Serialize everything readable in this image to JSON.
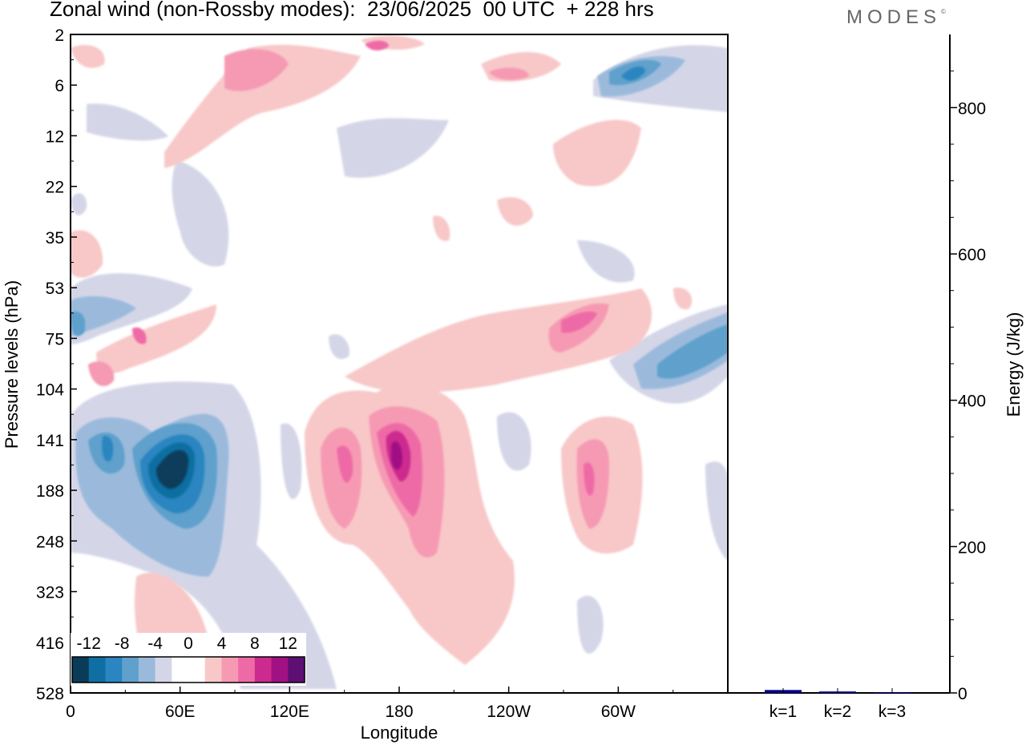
{
  "title": "Zonal wind (non-Rossby modes):  23/06/2025  00 UTC  + 228 hrs",
  "logo": {
    "text": "MODES",
    "mark": "©"
  },
  "chart_data": [
    {
      "type": "heatmap",
      "xlabel": "Longitude",
      "ylabel": "Pressure levels (hPa)",
      "x_ticks": [
        "0",
        "60E",
        "120E",
        "180",
        "120W",
        "60W"
      ],
      "y_ticks": [
        "2",
        "6",
        "12",
        "22",
        "35",
        "53",
        "75",
        "104",
        "141",
        "188",
        "248",
        "323",
        "416",
        "528"
      ],
      "colorbar": {
        "labels": [
          "-12",
          "-8",
          "-4",
          "0",
          "4",
          "8",
          "12"
        ],
        "colors": [
          "#0a3c5a",
          "#0f6ea2",
          "#2a85c0",
          "#5fa0cc",
          "#9bbadb",
          "#d4d6e8",
          "#ffffff",
          "#ffffff",
          "#f8c8c8",
          "#f69ab4",
          "#ee6aa6",
          "#cc2a8e",
          "#a11184",
          "#5e0f73"
        ]
      },
      "features": [
        {
          "name": "negative core",
          "lon": 50,
          "level": "141-188",
          "value": -14
        },
        {
          "name": "negative core",
          "lon": 20,
          "level": "141",
          "value": -8
        },
        {
          "name": "negative core",
          "lon": 0,
          "level": "75",
          "value": -8
        },
        {
          "name": "negative band",
          "lon": 320,
          "level": "104",
          "value": -8
        },
        {
          "name": "negative core",
          "lon": 300,
          "level": "6",
          "value": -8
        },
        {
          "name": "positive core",
          "lon": 180,
          "level": "141-188",
          "value": 12
        },
        {
          "name": "positive core",
          "lon": 150,
          "level": "141-188",
          "value": 8
        },
        {
          "name": "positive core",
          "lon": 280,
          "level": "188",
          "value": 8
        },
        {
          "name": "positive band",
          "lon": 290,
          "level": "75",
          "value": 6
        },
        {
          "name": "positive core",
          "lon": 170,
          "level": "2",
          "value": 8
        }
      ]
    },
    {
      "type": "bar",
      "categories": [
        "k=1",
        "k=2",
        "k=3"
      ],
      "values": [
        4,
        2,
        1
      ],
      "ylabel": "Energy (J/kg)",
      "ylim": [
        0,
        900
      ],
      "y_ticks": [
        0,
        200,
        400,
        600,
        800
      ],
      "bar_color": "#00008b"
    }
  ]
}
